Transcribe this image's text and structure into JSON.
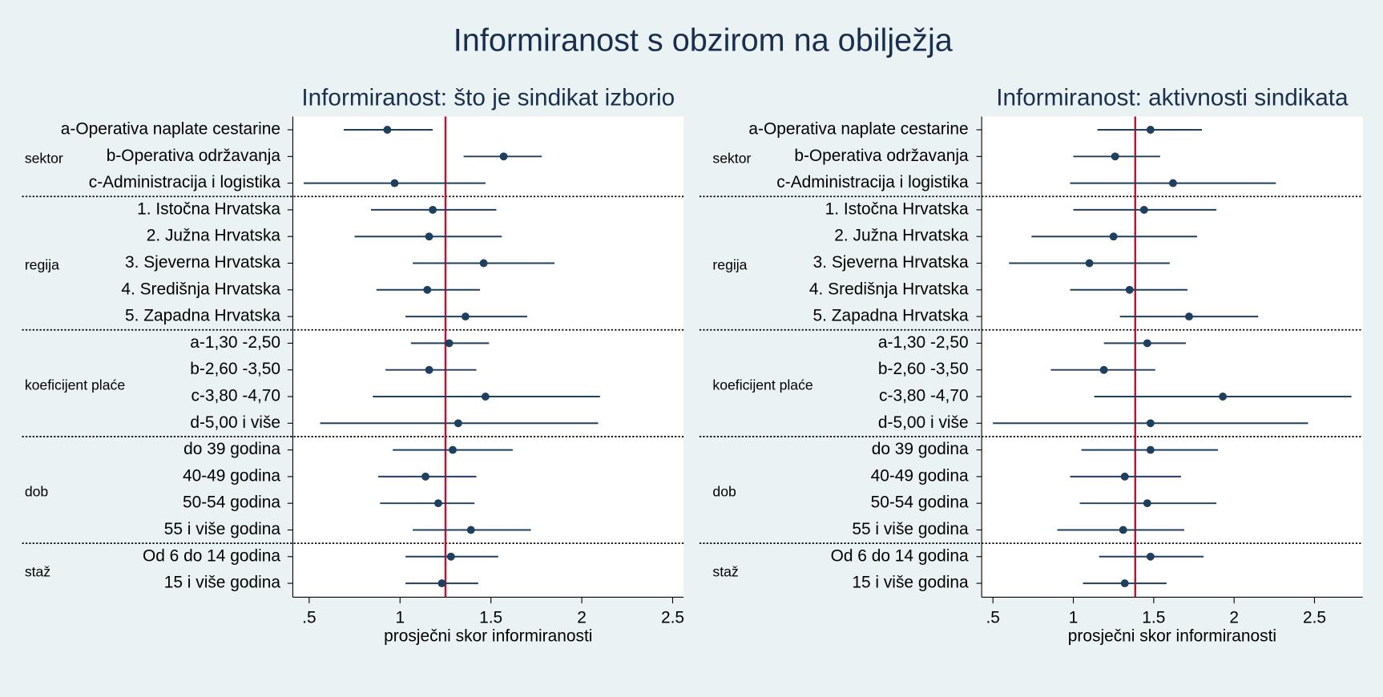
{
  "title": "Informiranost s obzirom na obilježja",
  "chart_data": [
    {
      "type": "dot",
      "title": "Informiranost: što je sindikat izborio",
      "xlabel": "prosječni skor informiranosti",
      "xlim": [
        0.41,
        2.56
      ],
      "xticks": [
        {
          "value": 0.5,
          "label": ".5"
        },
        1,
        1.5,
        2,
        2.5
      ],
      "reference": 1.25,
      "reference_color": "#c0102c",
      "color": "#1f3f5f",
      "groups": [
        {
          "name": "sektor",
          "categories": [
            "a-Operativa naplate cestarine",
            "b-Operativa održavanja",
            "c-Administracija i logistika"
          ],
          "values": [
            0.93,
            1.57,
            0.97
          ],
          "low": [
            0.69,
            1.35,
            0.47
          ],
          "high": [
            1.18,
            1.78,
            1.47
          ]
        },
        {
          "name": "regija",
          "categories": [
            "1. Istočna Hrvatska",
            "2. Južna Hrvatska",
            "3. Sjeverna Hrvatska",
            "4. Središnja Hrvatska",
            "5. Zapadna Hrvatska"
          ],
          "values": [
            1.18,
            1.16,
            1.46,
            1.15,
            1.36
          ],
          "low": [
            0.84,
            0.75,
            1.07,
            0.87,
            1.03
          ],
          "high": [
            1.53,
            1.56,
            1.85,
            1.44,
            1.7
          ]
        },
        {
          "name": "koeficijent plaće",
          "categories": [
            "a-1,30 -2,50",
            "b-2,60 -3,50",
            "c-3,80 -4,70",
            "d-5,00 i više"
          ],
          "values": [
            1.27,
            1.16,
            1.47,
            1.32
          ],
          "low": [
            1.06,
            0.92,
            0.85,
            0.56
          ],
          "high": [
            1.49,
            1.42,
            2.1,
            2.09
          ]
        },
        {
          "name": "dob",
          "categories": [
            "do 39 godina",
            "40-49 godina",
            "50-54 godina",
            "55 i više godina"
          ],
          "values": [
            1.29,
            1.14,
            1.21,
            1.39
          ],
          "low": [
            0.96,
            0.88,
            0.89,
            1.07
          ],
          "high": [
            1.62,
            1.42,
            1.41,
            1.72
          ]
        },
        {
          "name": "staž",
          "categories": [
            "Od 6 do 14 godina",
            "15 i više godina"
          ],
          "values": [
            1.28,
            1.23
          ],
          "low": [
            1.03,
            1.03
          ],
          "high": [
            1.54,
            1.43
          ]
        }
      ]
    },
    {
      "type": "dot",
      "title": "Informiranost: aktivnosti sindikata",
      "xlabel": "prosječni skor informiranosti",
      "xlim": [
        0.43,
        2.8
      ],
      "xticks": [
        {
          "value": 0.5,
          "label": ".5"
        },
        1,
        1.5,
        2,
        2.5
      ],
      "reference": 1.385,
      "reference_color": "#c0102c",
      "color": "#1f3f5f",
      "groups": [
        {
          "name": "sektor",
          "categories": [
            "a-Operativa naplate cestarine",
            "b-Operativa održavanja",
            "c-Administracija i logistika"
          ],
          "values": [
            1.48,
            1.26,
            1.62
          ],
          "low": [
            1.15,
            1.0,
            0.98
          ],
          "high": [
            1.8,
            1.54,
            2.26
          ]
        },
        {
          "name": "regija",
          "categories": [
            "1. Istočna Hrvatska",
            "2. Južna Hrvatska",
            "3. Sjeverna Hrvatska",
            "4. Središnja Hrvatska",
            "5. Zapadna Hrvatska"
          ],
          "values": [
            1.44,
            1.25,
            1.1,
            1.35,
            1.72
          ],
          "low": [
            1.0,
            0.74,
            0.6,
            0.98,
            1.29
          ],
          "high": [
            1.89,
            1.77,
            1.6,
            1.71,
            2.15
          ]
        },
        {
          "name": "koeficijent plaće",
          "categories": [
            "a-1,30 -2,50",
            "b-2,60 -3,50",
            "c-3,80 -4,70",
            "d-5,00 i više"
          ],
          "values": [
            1.46,
            1.19,
            1.93,
            1.48
          ],
          "low": [
            1.19,
            0.86,
            1.13,
            0.5
          ],
          "high": [
            1.7,
            1.51,
            2.73,
            2.46
          ]
        },
        {
          "name": "dob",
          "categories": [
            "do 39 godina",
            "40-49 godina",
            "50-54 godina",
            "55 i više godina"
          ],
          "values": [
            1.48,
            1.32,
            1.46,
            1.31
          ],
          "low": [
            1.05,
            0.98,
            1.04,
            0.9
          ],
          "high": [
            1.9,
            1.67,
            1.89,
            1.69
          ]
        },
        {
          "name": "staž",
          "categories": [
            "Od 6 do 14 godina",
            "15 i više godina"
          ],
          "values": [
            1.48,
            1.32
          ],
          "low": [
            1.16,
            1.06
          ],
          "high": [
            1.81,
            1.58
          ]
        }
      ]
    }
  ]
}
